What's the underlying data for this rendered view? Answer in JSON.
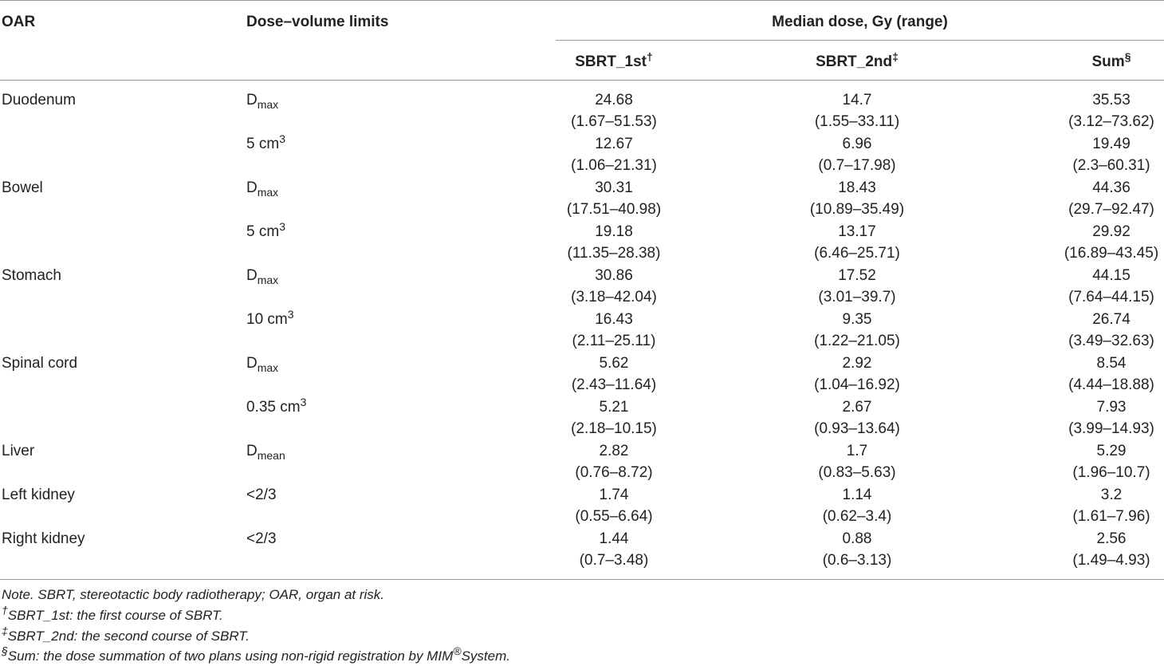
{
  "header": {
    "oar": "OAR",
    "limits": "Dose–volume limits",
    "median": "Median dose, Gy (range)",
    "sbrt1": "SBRT_1st",
    "sbrt1_mark": "†",
    "sbrt2": "SBRT_2nd",
    "sbrt2_mark": "‡",
    "sum": "Sum",
    "sum_mark": "§"
  },
  "rows": [
    {
      "oar": "Duodenum",
      "limit": "D",
      "limit_sub": "max",
      "limit_sup": "",
      "v1": "24.68",
      "r1": "(1.67–51.53)",
      "v2": "14.7",
      "r2": "(1.55–33.11)",
      "v3": "35.53",
      "r3": "(3.12–73.62)"
    },
    {
      "oar": "",
      "limit": "5 cm",
      "limit_sub": "",
      "limit_sup": "3",
      "v1": "12.67",
      "r1": "(1.06–21.31)",
      "v2": "6.96",
      "r2": "(0.7–17.98)",
      "v3": "19.49",
      "r3": "(2.3–60.31)"
    },
    {
      "oar": "Bowel",
      "limit": "D",
      "limit_sub": "max",
      "limit_sup": "",
      "v1": "30.31",
      "r1": "(17.51–40.98)",
      "v2": "18.43",
      "r2": "(10.89–35.49)",
      "v3": "44.36",
      "r3": "(29.7–92.47)"
    },
    {
      "oar": "",
      "limit": "5 cm",
      "limit_sub": "",
      "limit_sup": "3",
      "v1": "19.18",
      "r1": "(11.35–28.38)",
      "v2": "13.17",
      "r2": "(6.46–25.71)",
      "v3": "29.92",
      "r3": "(16.89–43.45)"
    },
    {
      "oar": "Stomach",
      "limit": "D",
      "limit_sub": "max",
      "limit_sup": "",
      "v1": "30.86",
      "r1": "(3.18–42.04)",
      "v2": "17.52",
      "r2": "(3.01–39.7)",
      "v3": "44.15",
      "r3": "(7.64–44.15)"
    },
    {
      "oar": "",
      "limit": "10 cm",
      "limit_sub": "",
      "limit_sup": "3",
      "v1": "16.43",
      "r1": "(2.11–25.11)",
      "v2": "9.35",
      "r2": "(1.22–21.05)",
      "v3": "26.74",
      "r3": "(3.49–32.63)"
    },
    {
      "oar": "Spinal cord",
      "limit": "D",
      "limit_sub": "max",
      "limit_sup": "",
      "v1": "5.62",
      "r1": "(2.43–11.64)",
      "v2": "2.92",
      "r2": "(1.04–16.92)",
      "v3": "8.54",
      "r3": "(4.44–18.88)"
    },
    {
      "oar": "",
      "limit": "0.35 cm",
      "limit_sub": "",
      "limit_sup": "3",
      "v1": "5.21",
      "r1": "(2.18–10.15)",
      "v2": "2.67",
      "r2": "(0.93–13.64)",
      "v3": "7.93",
      "r3": "(3.99–14.93)"
    },
    {
      "oar": "Liver",
      "limit": "D",
      "limit_sub": "mean",
      "limit_sup": "",
      "v1": "2.82",
      "r1": "(0.76–8.72)",
      "v2": "1.7",
      "r2": "(0.83–5.63)",
      "v3": "5.29",
      "r3": "(1.96–10.7)"
    },
    {
      "oar": "Left kidney",
      "limit": "<2/3",
      "limit_sub": "",
      "limit_sup": "",
      "v1": "1.74",
      "r1": "(0.55–6.64)",
      "v2": "1.14",
      "r2": "(0.62–3.4)",
      "v3": "3.2",
      "r3": "(1.61–7.96)"
    },
    {
      "oar": "Right kidney",
      "limit": "<2/3",
      "limit_sub": "",
      "limit_sup": "",
      "v1": "1.44",
      "r1": "(0.7–3.48)",
      "v2": "0.88",
      "r2": "(0.6–3.13)",
      "v3": "2.56",
      "r3": "(1.49–4.93)"
    }
  ],
  "notes": {
    "note1": "Note. SBRT, stereotactic body radiotherapy; OAR, organ at risk.",
    "note2_mark": "†",
    "note2": "SBRT_1st: the first course of SBRT.",
    "note3_mark": "‡",
    "note3": "SBRT_2nd: the second course of SBRT.",
    "note4_mark": "§",
    "note4_a": "Sum: the dose summation of two plans using non-rigid registration by MIM",
    "note4_reg": "®",
    "note4_b": "System."
  }
}
